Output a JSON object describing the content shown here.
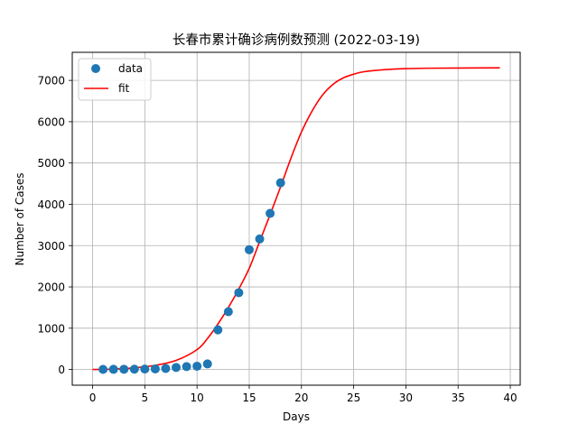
{
  "chart_data": {
    "type": "scatter",
    "title": "长春市累计确诊病例数预测 (2022-03-19)",
    "xlabel": "Days",
    "ylabel": "Number of Cases",
    "xlim": [
      -1.95,
      40.95
    ],
    "ylim": [
      -380,
      7680
    ],
    "xticks": [
      0,
      5,
      10,
      15,
      20,
      25,
      30,
      35,
      40
    ],
    "yticks": [
      0,
      1000,
      2000,
      3000,
      4000,
      5000,
      6000,
      7000
    ],
    "grid": true,
    "legend_position": "top-left",
    "series": [
      {
        "name": "data",
        "type": "scatter",
        "color": "#1f77b4",
        "x": [
          1,
          2,
          3,
          4,
          5,
          6,
          7,
          8,
          9,
          10,
          11,
          12,
          13,
          14,
          15,
          16,
          17,
          18
        ],
        "y": [
          2,
          4,
          6,
          8,
          10,
          14,
          25,
          50,
          70,
          80,
          135,
          960,
          1400,
          1860,
          2900,
          3160,
          3780,
          4520
        ]
      },
      {
        "name": "fit",
        "type": "line",
        "color": "#ff0000",
        "x": [
          0,
          2,
          4,
          6,
          8,
          10,
          11,
          12,
          13,
          14,
          15,
          16,
          17,
          18,
          19,
          20,
          21,
          22,
          23,
          24,
          25,
          26,
          28,
          30,
          32,
          35,
          39
        ],
        "y": [
          0,
          10,
          40,
          100,
          220,
          480,
          750,
          1100,
          1500,
          1950,
          2450,
          3100,
          3750,
          4420,
          5120,
          5750,
          6250,
          6640,
          6900,
          7060,
          7150,
          7210,
          7260,
          7285,
          7295,
          7300,
          7305
        ]
      }
    ]
  }
}
